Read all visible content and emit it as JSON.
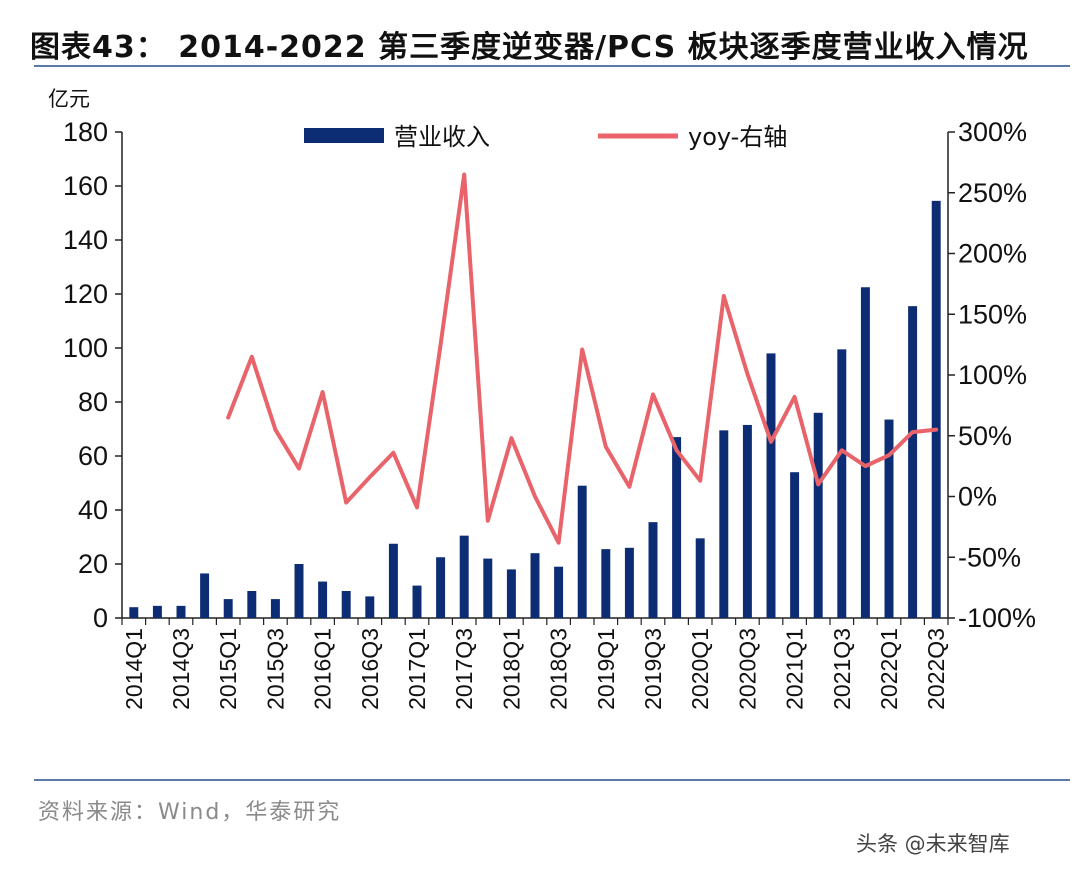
{
  "title": "图表43： 2014-2022 第三季度逆变器/PCS 板块逐季度营业收入情况",
  "source": "资料来源：Wind，华泰研究",
  "watermark": "头条 @未来智库",
  "chart_data": {
    "type": "bar+line",
    "left_unit": "亿元",
    "left_ylim": [
      0,
      180
    ],
    "left_ticks": [
      "0",
      "20",
      "40",
      "60",
      "80",
      "100",
      "120",
      "140",
      "160",
      "180"
    ],
    "right_ylim": [
      -100,
      300
    ],
    "right_ticks": [
      "-100%",
      "-50%",
      "0%",
      "50%",
      "100%",
      "150%",
      "200%",
      "250%",
      "300%"
    ],
    "categories": [
      "2014Q1",
      "2014Q2",
      "2014Q3",
      "2014Q4",
      "2015Q1",
      "2015Q2",
      "2015Q3",
      "2015Q4",
      "2016Q1",
      "2016Q2",
      "2016Q3",
      "2016Q4",
      "2017Q1",
      "2017Q2",
      "2017Q3",
      "2017Q4",
      "2018Q1",
      "2018Q2",
      "2018Q3",
      "2018Q4",
      "2019Q1",
      "2019Q2",
      "2019Q3",
      "2019Q4",
      "2020Q1",
      "2020Q2",
      "2020Q3",
      "2020Q4",
      "2021Q1",
      "2021Q2",
      "2021Q3",
      "2021Q4",
      "2022Q1",
      "2022Q2",
      "2022Q3"
    ],
    "xtick_labels": [
      "2014Q1",
      "",
      "2014Q3",
      "",
      "2015Q1",
      "",
      "2015Q3",
      "",
      "2016Q1",
      "",
      "2016Q3",
      "",
      "2017Q1",
      "",
      "2017Q3",
      "",
      "2018Q1",
      "",
      "2018Q3",
      "",
      "2019Q1",
      "",
      "2019Q3",
      "",
      "2020Q1",
      "",
      "2020Q3",
      "",
      "2021Q1",
      "",
      "2021Q3",
      "",
      "2022Q1",
      "",
      "2022Q3"
    ],
    "series": [
      {
        "name": "营业收入",
        "axis": "left",
        "kind": "bar",
        "color": "#0c2d74",
        "values": [
          4,
          4.5,
          4.5,
          16.5,
          7,
          10,
          7,
          20,
          13.5,
          10,
          8,
          27.5,
          12,
          22.5,
          30.5,
          22,
          18,
          24,
          19,
          49,
          25.5,
          26,
          35.5,
          67,
          29.5,
          69.5,
          71.5,
          98,
          54,
          76,
          99.5,
          122.5,
          73.5,
          115.5,
          154.5
        ]
      },
      {
        "name": "yoy-右轴",
        "axis": "right",
        "kind": "line",
        "color": "#e8636a",
        "values": [
          null,
          null,
          null,
          null,
          65,
          115,
          55,
          23,
          86,
          -5,
          16,
          36,
          -9,
          125,
          265,
          -20,
          48,
          0,
          -38,
          121,
          41,
          8,
          84,
          38,
          13,
          165,
          101,
          45,
          82,
          10,
          38,
          25,
          34,
          53,
          55
        ]
      }
    ]
  }
}
